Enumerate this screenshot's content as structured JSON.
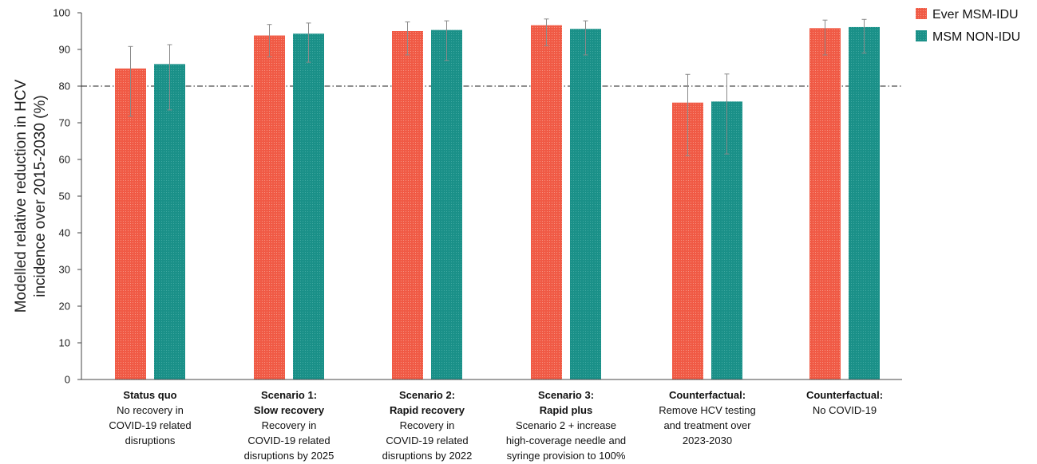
{
  "chart_data": {
    "type": "bar",
    "ylabel_lines": [
      "Modelled relative reduction in HCV",
      "incidence over 2015-2030 (%)"
    ],
    "ylim": [
      0,
      100
    ],
    "yticks": [
      0,
      10,
      20,
      30,
      40,
      50,
      60,
      70,
      80,
      90,
      100
    ],
    "reference_line": 80,
    "categories": [
      {
        "title": "Status quo",
        "lines": [
          "No recovery in",
          "COVID-19 related",
          "disruptions"
        ]
      },
      {
        "title": "Scenario 1:",
        "title2": "Slow recovery",
        "lines": [
          "Recovery in",
          "COVID-19 related",
          "disruptions by 2025"
        ]
      },
      {
        "title": "Scenario 2:",
        "title2": "Rapid recovery",
        "lines": [
          "Recovery in",
          "COVID-19 related",
          "disruptions by 2022"
        ]
      },
      {
        "title": "Scenario 3:",
        "title2": "Rapid plus",
        "lines": [
          "Scenario 2 + increase",
          "high-coverage needle and",
          "syringe provision to 100%"
        ]
      },
      {
        "title": "Counterfactual:",
        "lines": [
          "Remove HCV testing",
          "and treatment over",
          "2023-2030"
        ]
      },
      {
        "title": "Counterfactual:",
        "lines": [
          "No COVID-19"
        ]
      }
    ],
    "series": [
      {
        "name": "Ever MSM-IDU",
        "color": "#f05a45",
        "values": [
          84.8,
          93.8,
          95.0,
          96.6,
          75.5,
          95.8
        ],
        "err_low": [
          71.8,
          88.0,
          88.5,
          91.0,
          61.0,
          88.5
        ],
        "err_high": [
          90.8,
          96.8,
          97.5,
          98.3,
          83.2,
          98.0
        ]
      },
      {
        "name": "MSM NON-IDU",
        "color": "#1a9088",
        "values": [
          86.0,
          94.3,
          95.3,
          95.6,
          75.8,
          96.1
        ],
        "err_low": [
          73.5,
          86.5,
          87.0,
          88.5,
          61.5,
          89.0
        ],
        "err_high": [
          91.3,
          97.2,
          97.8,
          97.8,
          83.3,
          98.2
        ]
      }
    ],
    "legend_position": "top-right",
    "grid": false
  }
}
